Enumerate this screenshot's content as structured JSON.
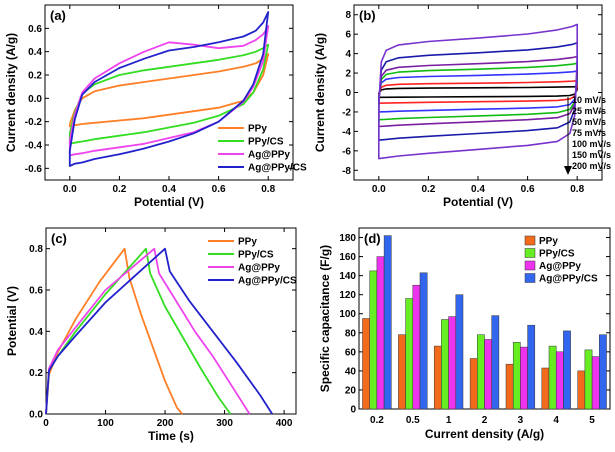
{
  "chart_data": [
    {
      "id": "a",
      "type": "line",
      "panel_label": "(a)",
      "xlabel": "Potential (V)",
      "ylabel": "Current density (A/g)",
      "xlim": [
        -0.1,
        0.9
      ],
      "ylim": [
        -0.7,
        0.8
      ],
      "xticks": [
        0.0,
        0.2,
        0.4,
        0.6,
        0.8
      ],
      "xtick_labels": [
        "0.0",
        "0.2",
        "0.4",
        "0.6",
        "0.8"
      ],
      "yticks": [
        -0.6,
        -0.4,
        -0.2,
        0.0,
        0.2,
        0.4,
        0.6
      ],
      "ytick_labels": [
        "-0.6",
        "-0.4",
        "-0.2",
        "0.0",
        "0.2",
        "0.4",
        "0.6"
      ],
      "legend_position": "bottom-right",
      "series": [
        {
          "name": "PPy",
          "color": "#ff7f27",
          "x": [
            0.0,
            0.02,
            0.05,
            0.1,
            0.2,
            0.3,
            0.4,
            0.5,
            0.6,
            0.7,
            0.75,
            0.78,
            0.8,
            0.8,
            0.78,
            0.74,
            0.7,
            0.6,
            0.5,
            0.4,
            0.3,
            0.2,
            0.1,
            0.05,
            0.02,
            0.0,
            0.0
          ],
          "y": [
            -0.22,
            -0.1,
            0.0,
            0.06,
            0.11,
            0.14,
            0.17,
            0.2,
            0.23,
            0.27,
            0.3,
            0.34,
            0.37,
            0.38,
            0.2,
            0.05,
            -0.02,
            -0.08,
            -0.11,
            -0.14,
            -0.17,
            -0.19,
            -0.21,
            -0.22,
            -0.23,
            -0.24,
            -0.22
          ]
        },
        {
          "name": "PPy/CS",
          "color": "#33dd22",
          "x": [
            0.0,
            0.02,
            0.05,
            0.1,
            0.2,
            0.3,
            0.4,
            0.5,
            0.6,
            0.7,
            0.75,
            0.78,
            0.8,
            0.8,
            0.78,
            0.74,
            0.7,
            0.6,
            0.5,
            0.4,
            0.3,
            0.2,
            0.1,
            0.05,
            0.02,
            0.0,
            0.0
          ],
          "y": [
            -0.3,
            -0.12,
            0.04,
            0.12,
            0.2,
            0.24,
            0.27,
            0.3,
            0.33,
            0.37,
            0.4,
            0.43,
            0.46,
            0.46,
            0.25,
            0.05,
            -0.05,
            -0.15,
            -0.21,
            -0.25,
            -0.29,
            -0.32,
            -0.35,
            -0.37,
            -0.38,
            -0.39,
            -0.3
          ]
        },
        {
          "name": "Ag@PPy",
          "color": "#ee44ee",
          "x": [
            0.0,
            0.02,
            0.05,
            0.1,
            0.2,
            0.3,
            0.4,
            0.5,
            0.6,
            0.7,
            0.75,
            0.78,
            0.8,
            0.8,
            0.78,
            0.74,
            0.7,
            0.6,
            0.5,
            0.4,
            0.3,
            0.2,
            0.1,
            0.05,
            0.02,
            0.0,
            0.0
          ],
          "y": [
            -0.36,
            -0.14,
            0.05,
            0.17,
            0.3,
            0.4,
            0.48,
            0.46,
            0.43,
            0.45,
            0.5,
            0.55,
            0.61,
            0.62,
            0.32,
            0.1,
            -0.03,
            -0.2,
            -0.29,
            -0.34,
            -0.39,
            -0.42,
            -0.45,
            -0.47,
            -0.48,
            -0.49,
            -0.36
          ]
        },
        {
          "name": "Ag@PPy/CS",
          "color": "#2222cc",
          "x": [
            0.0,
            0.02,
            0.05,
            0.1,
            0.2,
            0.3,
            0.4,
            0.5,
            0.6,
            0.7,
            0.75,
            0.78,
            0.8,
            0.8,
            0.78,
            0.74,
            0.7,
            0.6,
            0.5,
            0.4,
            0.3,
            0.2,
            0.1,
            0.05,
            0.02,
            0.0,
            0.0
          ],
          "y": [
            -0.45,
            -0.18,
            0.03,
            0.14,
            0.26,
            0.34,
            0.41,
            0.44,
            0.48,
            0.53,
            0.58,
            0.65,
            0.74,
            0.74,
            0.38,
            0.12,
            -0.02,
            -0.2,
            -0.3,
            -0.37,
            -0.43,
            -0.48,
            -0.52,
            -0.55,
            -0.56,
            -0.58,
            -0.45
          ]
        }
      ]
    },
    {
      "id": "b",
      "type": "line",
      "panel_label": "(b)",
      "xlabel": "Potential (V)",
      "ylabel": "Current density (A/g)",
      "xlim": [
        -0.1,
        0.9
      ],
      "ylim": [
        -9,
        9
      ],
      "xticks": [
        0.0,
        0.2,
        0.4,
        0.6,
        0.8
      ],
      "xtick_labels": [
        "0.0",
        "0.2",
        "0.4",
        "0.6",
        "0.8"
      ],
      "yticks": [
        -8,
        -6,
        -4,
        -2,
        0,
        2,
        4,
        6,
        8
      ],
      "ytick_labels": [
        "-8",
        "-6",
        "-4",
        "-2",
        "0",
        "2",
        "4",
        "6",
        "8"
      ],
      "legend_position": "right",
      "rates": [
        "10 mV/s",
        "25 mV/s",
        "50 mV/s",
        "75 mV/s",
        "100 mV/s",
        "150 mV/s",
        "200 mV/s"
      ],
      "series": [
        {
          "name": "10 mV/s",
          "color": "#000000",
          "upper": 0.6,
          "lower": -0.5
        },
        {
          "name": "25 mV/s",
          "color": "#ff2222",
          "upper": 1.2,
          "lower": -1.1
        },
        {
          "name": "50 mV/s",
          "color": "#3333ff",
          "upper": 2.2,
          "lower": -2.0
        },
        {
          "name": "75 mV/s",
          "color": "#11bb11",
          "upper": 3.0,
          "lower": -2.8
        },
        {
          "name": "100 mV/s",
          "color": "#7a1fa2",
          "upper": 3.7,
          "lower": -3.5
        },
        {
          "name": "150 mV/s",
          "color": "#1a1aaa",
          "upper": 5.1,
          "lower": -4.9
        },
        {
          "name": "200 mV/s",
          "color": "#7733cc",
          "upper": 7.0,
          "lower": -6.8
        }
      ]
    },
    {
      "id": "c",
      "type": "line",
      "panel_label": "(c)",
      "xlabel": "Time (s)",
      "ylabel": "Potential (V)",
      "xlim": [
        0,
        420
      ],
      "ylim": [
        0,
        0.9
      ],
      "xticks": [
        0,
        100,
        200,
        300,
        400
      ],
      "xtick_labels": [
        "0",
        "100",
        "200",
        "300",
        "400"
      ],
      "yticks": [
        0.0,
        0.2,
        0.4,
        0.6,
        0.8
      ],
      "ytick_labels": [
        "0.0",
        "0.2",
        "0.4",
        "0.6",
        "0.8"
      ],
      "legend_position": "top-right",
      "series": [
        {
          "name": "PPy",
          "color": "#ff7f27",
          "x": [
            0,
            5,
            20,
            50,
            90,
            132,
            140,
            160,
            180,
            200,
            220,
            229
          ],
          "y": [
            0,
            0.19,
            0.3,
            0.46,
            0.64,
            0.8,
            0.66,
            0.48,
            0.32,
            0.16,
            0.03,
            0
          ]
        },
        {
          "name": "PPy/CS",
          "color": "#33dd22",
          "x": [
            0,
            5,
            20,
            50,
            100,
            168,
            175,
            200,
            230,
            260,
            290,
            310
          ],
          "y": [
            0,
            0.21,
            0.28,
            0.4,
            0.58,
            0.8,
            0.68,
            0.52,
            0.37,
            0.22,
            0.08,
            0
          ]
        },
        {
          "name": "Ag@PPy",
          "color": "#ee44ee",
          "x": [
            0,
            5,
            20,
            50,
            100,
            182,
            190,
            220,
            250,
            280,
            320,
            342
          ],
          "y": [
            0,
            0.22,
            0.31,
            0.42,
            0.6,
            0.8,
            0.68,
            0.54,
            0.4,
            0.28,
            0.1,
            0
          ]
        },
        {
          "name": "Ag@PPy/CS",
          "color": "#2222cc",
          "x": [
            0,
            5,
            20,
            50,
            100,
            200,
            208,
            240,
            280,
            320,
            360,
            380
          ],
          "y": [
            0,
            0.21,
            0.28,
            0.38,
            0.54,
            0.8,
            0.69,
            0.55,
            0.4,
            0.25,
            0.09,
            0
          ]
        }
      ]
    },
    {
      "id": "d",
      "type": "bar",
      "panel_label": "(d)",
      "xlabel": "Current density (A/g)",
      "ylabel": "Specific capacitance (F/g)",
      "categories": [
        "0.2",
        "0.5",
        "1",
        "2",
        "3",
        "4",
        "5"
      ],
      "ylim": [
        0,
        190
      ],
      "yticks": [
        0,
        20,
        40,
        60,
        80,
        100,
        120,
        140,
        160,
        180
      ],
      "ytick_labels": [
        "0",
        "20",
        "40",
        "60",
        "80",
        "100",
        "120",
        "140",
        "160",
        "180"
      ],
      "legend_position": "top-right",
      "series": [
        {
          "name": "PPy",
          "color": "#f26b1d",
          "values": [
            95,
            78,
            66,
            53,
            47,
            43,
            40
          ]
        },
        {
          "name": "PPy/CS",
          "color": "#66ee22",
          "values": [
            145,
            116,
            94,
            78,
            70,
            66,
            62
          ]
        },
        {
          "name": "Ag@PPy",
          "color": "#ee33ee",
          "values": [
            160,
            130,
            97,
            73,
            65,
            60,
            55
          ]
        },
        {
          "name": "Ag@PPy/CS",
          "color": "#3366ee",
          "values": [
            182,
            143,
            120,
            98,
            88,
            82,
            78
          ]
        }
      ]
    }
  ]
}
